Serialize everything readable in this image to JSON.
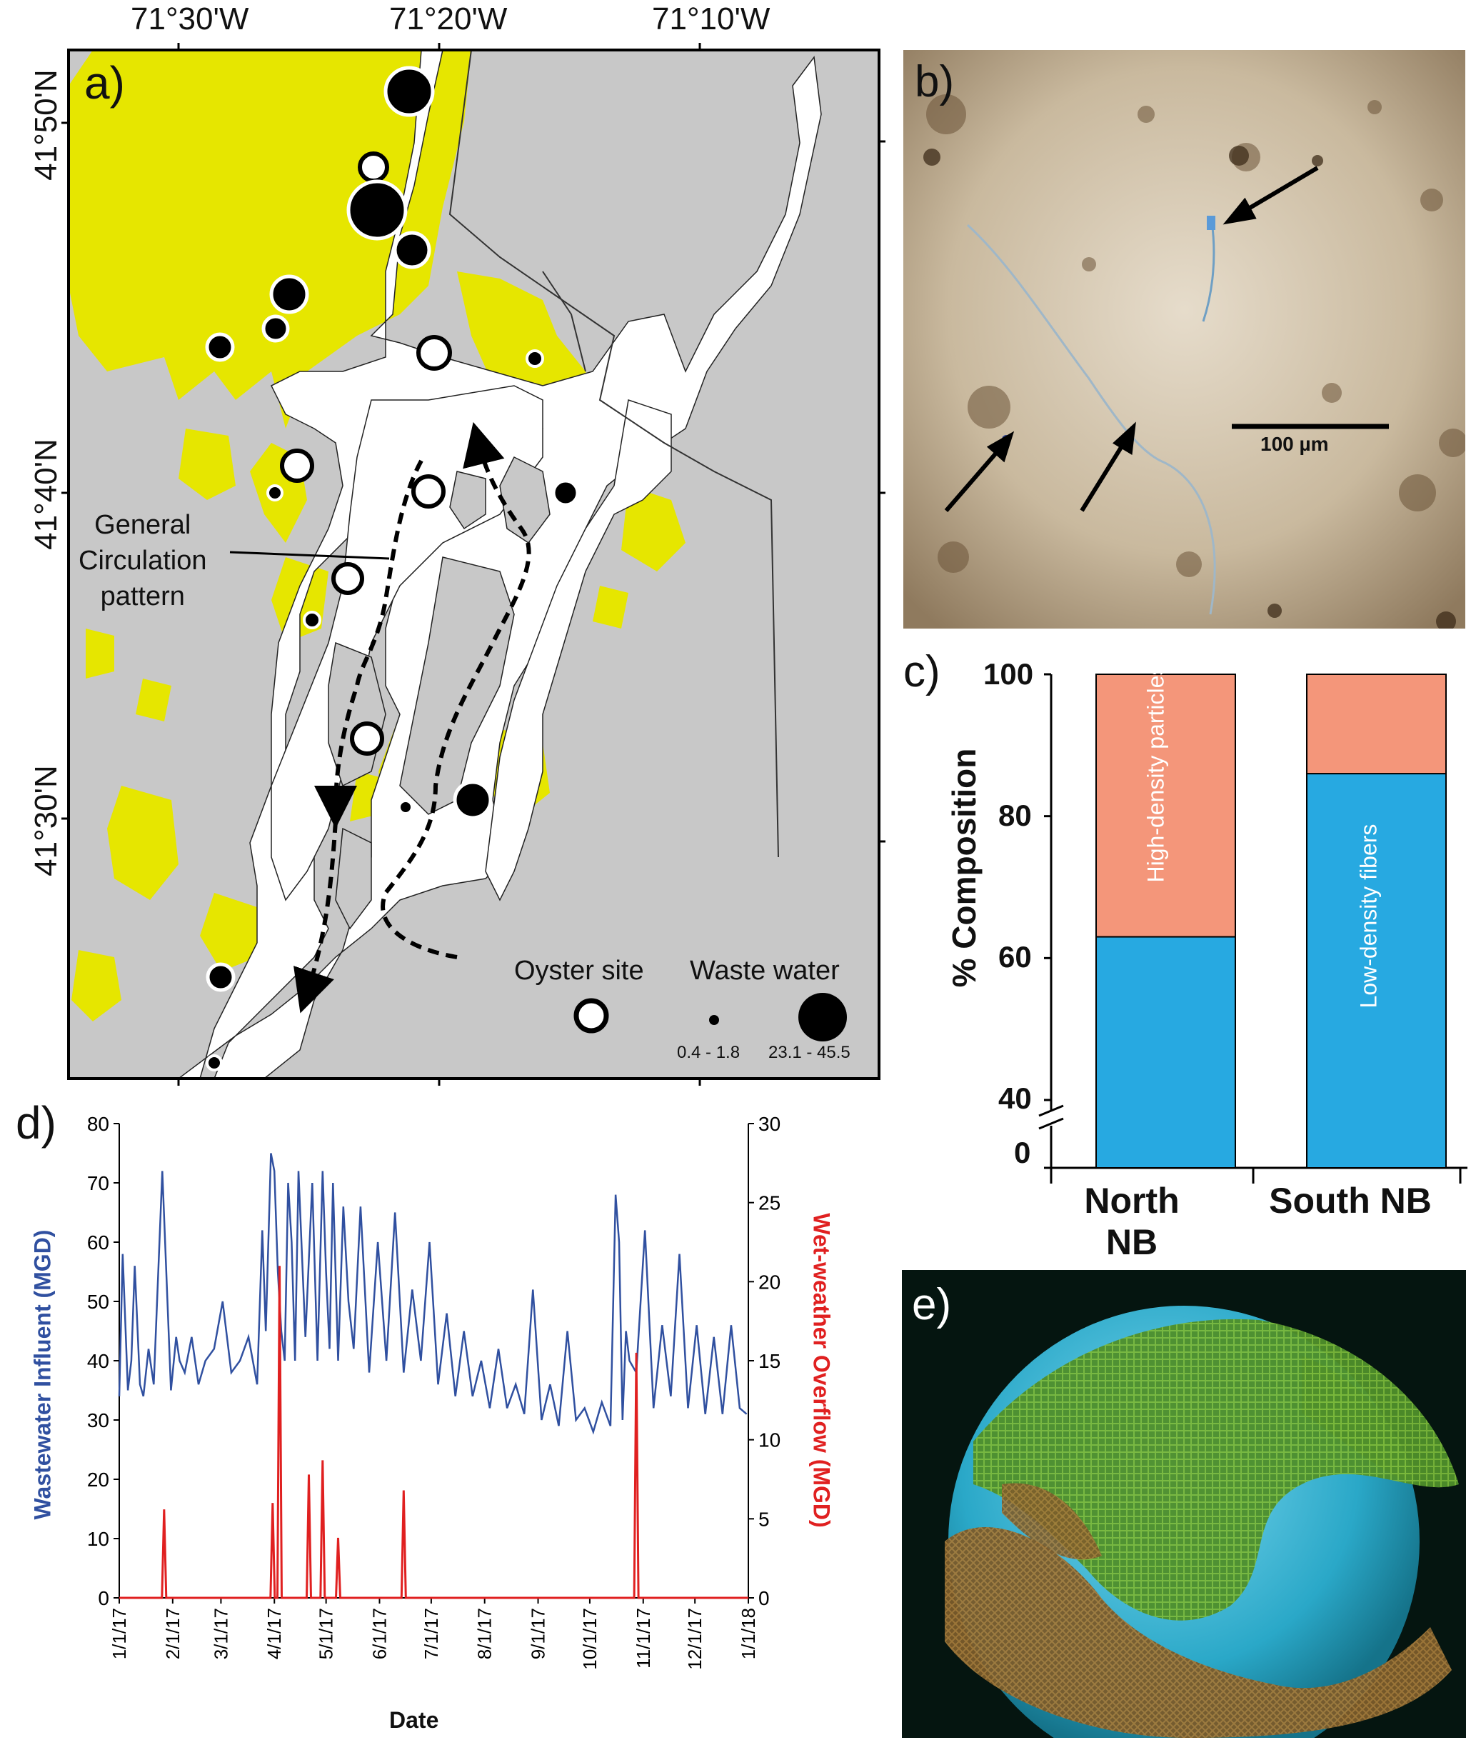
{
  "panels": {
    "a": {
      "letter": "a)",
      "lon_labels": [
        "71°30'W",
        "71°20'W",
        "71°10'W"
      ],
      "lat_labels": [
        "41°50'N",
        "41°40'N",
        "41°30'N"
      ],
      "annotation": [
        "General",
        "Circulation",
        "pattern"
      ],
      "legend": {
        "oyster_label": "Oyster site",
        "waste_label": "Waste water",
        "small_range": "0.4 - 1.8",
        "large_range": "23.1 - 45.5"
      },
      "colors": {
        "land": "#c8c8c8",
        "water": "#ffffff",
        "urban": "#e6e600",
        "site": "#000000"
      }
    },
    "b": {
      "letter": "b)",
      "scale_label": "100 µm"
    },
    "c": {
      "letter": "c)",
      "chart_data": {
        "type": "bar",
        "categories": [
          "North NB",
          "South NB"
        ],
        "series": [
          {
            "name": "Low-density fibers",
            "values": [
              63,
              86
            ],
            "color": "#27a9e1"
          },
          {
            "name": "High-density particles",
            "values": [
              37,
              14
            ],
            "color": "#f4967a"
          }
        ],
        "ylabel": "% Composition",
        "yticks": [
          "0",
          "40",
          "60",
          "80",
          "100"
        ],
        "ylim": [
          40,
          100
        ],
        "axis_break": true,
        "bar_labels": [
          "High-density particles",
          "Low-density fibers"
        ]
      }
    },
    "d": {
      "letter": "d)",
      "chart_data": {
        "type": "line",
        "xlabel": "Date",
        "x_ticks": [
          "1/1/17",
          "2/1/17",
          "3/1/17",
          "4/1/17",
          "5/1/17",
          "6/1/17",
          "7/1/17",
          "8/1/17",
          "9/1/17",
          "10/1/17",
          "11/1/17",
          "12/1/17",
          "1/1/18"
        ],
        "ylabel_left": "Wastewater Influent (MGD)",
        "ylabel_right": "Wet-weather Overflow (MGD)",
        "ylim_left": [
          0,
          80
        ],
        "ylim_right": [
          0,
          30
        ],
        "yticks_left": [
          "0",
          "10",
          "20",
          "30",
          "40",
          "50",
          "60",
          "70",
          "80"
        ],
        "yticks_right": [
          "0",
          "5",
          "10",
          "15",
          "20",
          "25",
          "30"
        ],
        "series": [
          {
            "name": "Wastewater Influent (MGD)",
            "axis": "left",
            "color": "#3050a0",
            "x_days": [
              0,
              2,
              5,
              7,
              9,
              12,
              14,
              17,
              20,
              25,
              30,
              33,
              35,
              38,
              42,
              46,
              50,
              55,
              60,
              65,
              70,
              75,
              80,
              83,
              85,
              88,
              90,
              92,
              94,
              96,
              98,
              100,
              102,
              104,
              108,
              112,
              115,
              118,
              120,
              122,
              124,
              127,
              130,
              133,
              136,
              140,
              145,
              150,
              155,
              160,
              165,
              170,
              175,
              180,
              185,
              190,
              195,
              200,
              205,
              210,
              215,
              220,
              225,
              230,
              235,
              240,
              245,
              250,
              255,
              260,
              265,
              270,
              275,
              280,
              285,
              288,
              290,
              292,
              294,
              296,
              300,
              305,
              310,
              315,
              320,
              325,
              330,
              335,
              340,
              345,
              350,
              355,
              360,
              364
            ],
            "values": [
              34,
              58,
              35,
              40,
              56,
              36,
              34,
              42,
              36,
              72,
              35,
              44,
              40,
              38,
              44,
              36,
              40,
              42,
              50,
              38,
              40,
              44,
              36,
              62,
              45,
              75,
              72,
              55,
              45,
              40,
              70,
              60,
              40,
              72,
              44,
              70,
              40,
              72,
              55,
              42,
              70,
              40,
              66,
              50,
              42,
              66,
              38,
              60,
              40,
              65,
              38,
              52,
              40,
              60,
              36,
              48,
              34,
              45,
              34,
              40,
              32,
              42,
              32,
              36,
              31,
              52,
              30,
              36,
              29,
              45,
              30,
              32,
              28,
              33,
              29,
              68,
              60,
              30,
              45,
              40,
              38,
              62,
              32,
              46,
              34,
              58,
              32,
              46,
              31,
              44,
              31,
              46,
              32,
              31
            ],
            "note": "approximate daily trace"
          },
          {
            "name": "Wet-weather Overflow (MGD)",
            "axis": "right",
            "color": "#e02020",
            "events": [
              {
                "day": 26,
                "value": 5.6
              },
              {
                "day": 89,
                "value": 6.0
              },
              {
                "day": 93,
                "value": 21.0
              },
              {
                "day": 110,
                "value": 7.8
              },
              {
                "day": 118,
                "value": 8.7
              },
              {
                "day": 127,
                "value": 3.8
              },
              {
                "day": 165,
                "value": 6.8
              },
              {
                "day": 300,
                "value": 15.5
              }
            ]
          }
        ]
      }
    },
    "e": {
      "letter": "e)"
    }
  }
}
